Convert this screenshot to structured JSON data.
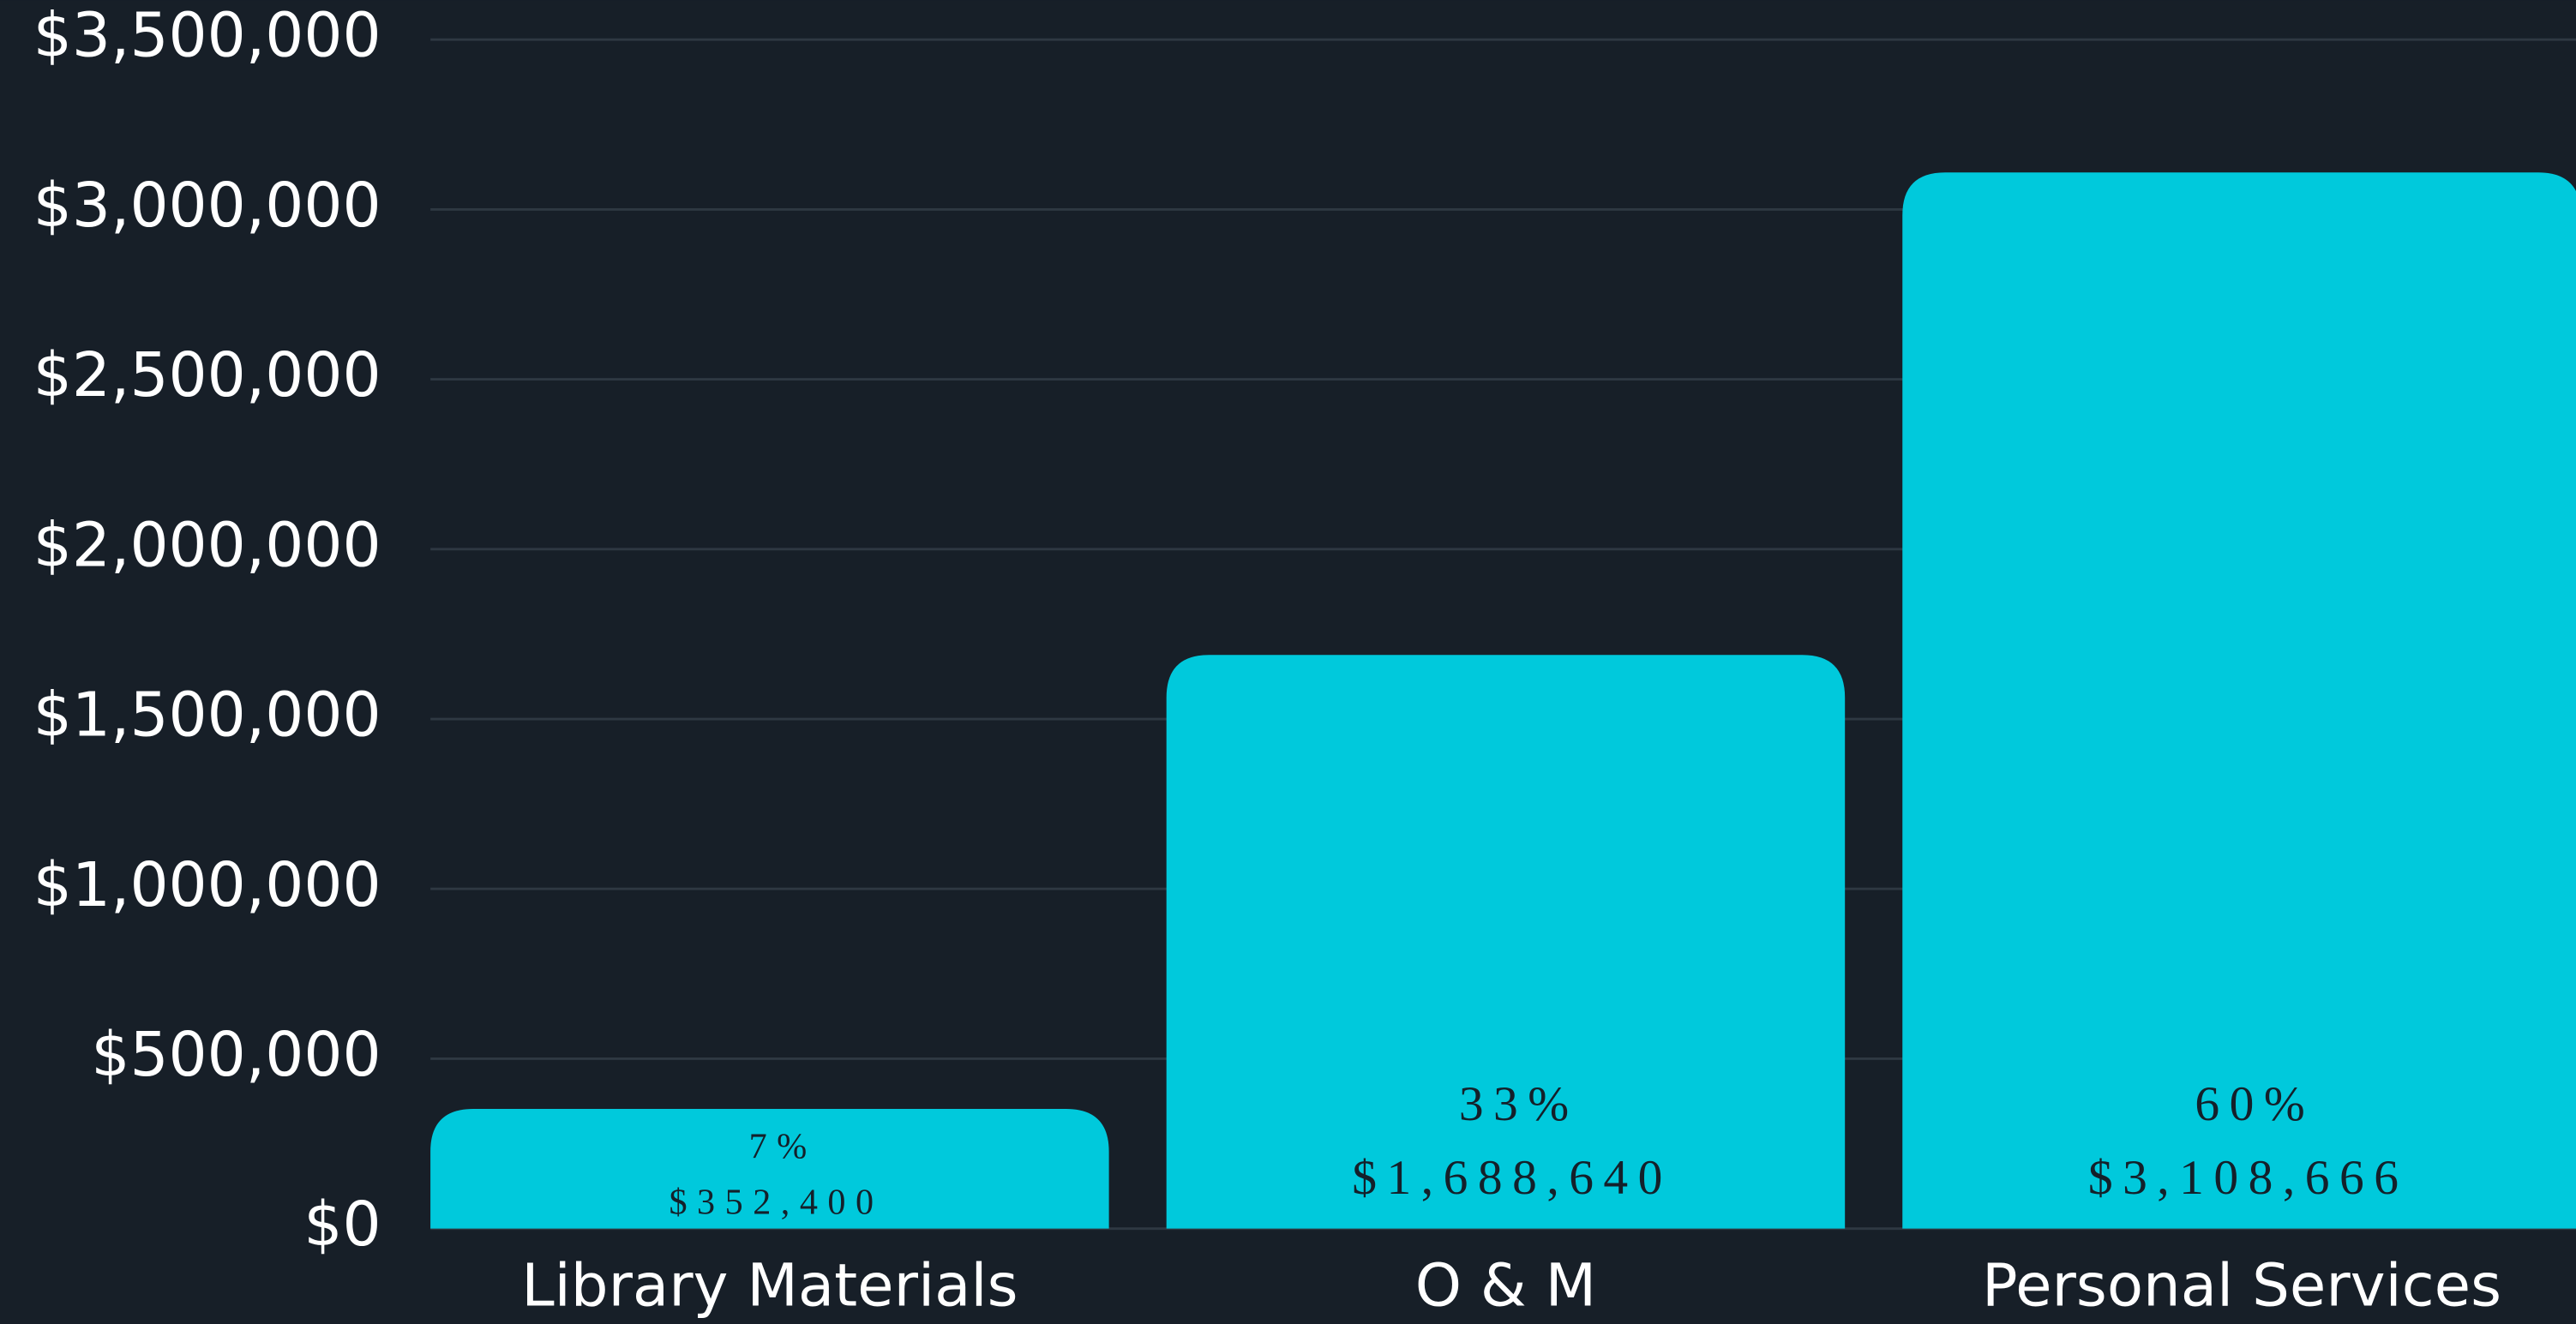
{
  "chart_data": {
    "type": "bar",
    "categories": [
      "Library Materials",
      "O & M",
      "Personal Services"
    ],
    "values": [
      352400,
      1688640,
      3108666
    ],
    "value_labels": [
      "$352,400",
      "$1,688,640",
      "$3,108,666"
    ],
    "percent_labels": [
      "7%",
      "33%",
      "60%"
    ],
    "color": "#00c9dc",
    "ylim": [
      0,
      3500000
    ],
    "yticks": [
      {
        "value": 0,
        "label": "$0"
      },
      {
        "value": 500000,
        "label": "$500,000"
      },
      {
        "value": 1000000,
        "label": "$1,000,000"
      },
      {
        "value": 1500000,
        "label": "$1,500,000"
      },
      {
        "value": 2000000,
        "label": "$2,000,000"
      },
      {
        "value": 2500000,
        "label": "$2,500,000"
      },
      {
        "value": 3000000,
        "label": "$3,000,000"
      },
      {
        "value": 3500000,
        "label": "$3,500,000"
      }
    ],
    "grid": true
  }
}
